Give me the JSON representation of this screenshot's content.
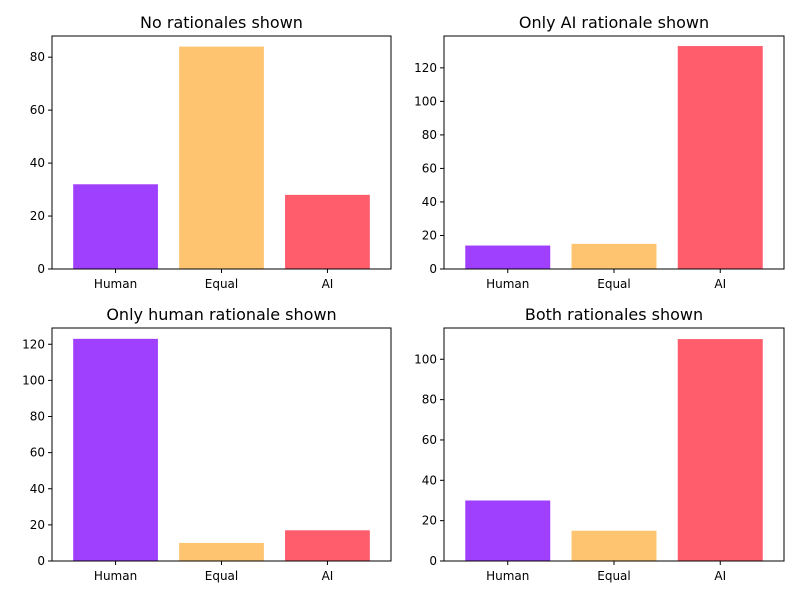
{
  "colors": {
    "human": "#a040ff",
    "equal": "#ffc470",
    "ai": "#ff5c6c",
    "axis": "#000000"
  },
  "chart_data": [
    {
      "type": "bar",
      "title": "No rationales shown",
      "categories": [
        "Human",
        "Equal",
        "AI"
      ],
      "values": [
        32,
        84,
        28
      ],
      "ylim": [
        0,
        88
      ],
      "yticks": [
        0,
        20,
        40,
        60,
        80
      ],
      "grid": false
    },
    {
      "type": "bar",
      "title": "Only AI rationale shown",
      "categories": [
        "Human",
        "Equal",
        "AI"
      ],
      "values": [
        14,
        15,
        133
      ],
      "ylim": [
        0,
        139
      ],
      "yticks": [
        0,
        20,
        40,
        60,
        80,
        100,
        120
      ],
      "grid": false
    },
    {
      "type": "bar",
      "title": "Only human rationale shown",
      "categories": [
        "Human",
        "Equal",
        "AI"
      ],
      "values": [
        123,
        10,
        17
      ],
      "ylim": [
        0,
        129
      ],
      "yticks": [
        0,
        20,
        40,
        60,
        80,
        100,
        120
      ],
      "grid": false
    },
    {
      "type": "bar",
      "title": "Both rationales shown",
      "categories": [
        "Human",
        "Equal",
        "AI"
      ],
      "values": [
        30,
        15,
        110
      ],
      "ylim": [
        0,
        115.5
      ],
      "yticks": [
        0,
        20,
        40,
        60,
        80,
        100
      ],
      "grid": false
    }
  ]
}
